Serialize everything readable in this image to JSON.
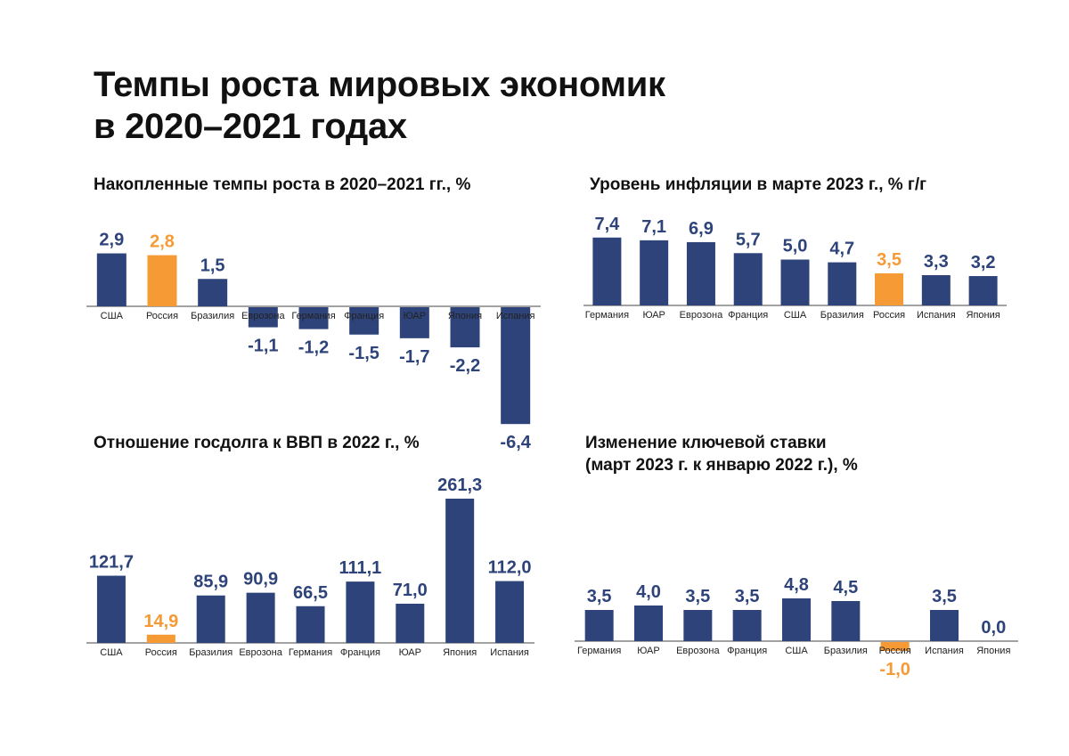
{
  "title": {
    "line1": "Темпы роста мировых экономик",
    "line2": "в 2020–2021 годах"
  },
  "colors": {
    "primary": "#2d4379",
    "highlight": "#f59a35",
    "axis": "#444444"
  },
  "chart_data": [
    {
      "type": "bar",
      "title": "Накопленные темпы роста в 2020–2021 гг., %",
      "categories": [
        "США",
        "Россия",
        "Бразилия",
        "Еврозона",
        "Германия",
        "Франция",
        "ЮАР",
        "Япония",
        "Испания"
      ],
      "values": [
        2.9,
        2.8,
        1.5,
        -1.1,
        -1.2,
        -1.5,
        -1.7,
        -2.2,
        -6.4
      ],
      "labels": [
        "2,9",
        "2,8",
        "1,5",
        "-1,1",
        "-1,2",
        "-1,5",
        "-1,7",
        "-2,2",
        "-6,4"
      ],
      "highlight": "Россия",
      "xlabel": "",
      "ylabel": "",
      "grid": false
    },
    {
      "type": "bar",
      "title": "Уровень инфляции в марте 2023 г., % г/г",
      "categories": [
        "Германия",
        "ЮАР",
        "Еврозона",
        "Франция",
        "США",
        "Бразилия",
        "Россия",
        "Испания",
        "Япония"
      ],
      "values": [
        7.4,
        7.1,
        6.9,
        5.7,
        5.0,
        4.7,
        3.5,
        3.3,
        3.2
      ],
      "labels": [
        "7,4",
        "7,1",
        "6,9",
        "5,7",
        "5,0",
        "4,7",
        "3,5",
        "3,3",
        "3,2"
      ],
      "highlight": "Россия",
      "xlabel": "",
      "ylabel": "",
      "grid": false
    },
    {
      "type": "bar",
      "title": "Отношение госдолга к ВВП в 2022 г., %",
      "categories": [
        "США",
        "Россия",
        "Бразилия",
        "Еврозона",
        "Германия",
        "Франция",
        "ЮАР",
        "Япония",
        "Испания"
      ],
      "values": [
        121.7,
        14.9,
        85.9,
        90.9,
        66.5,
        111.1,
        71.0,
        261.3,
        112.0
      ],
      "labels": [
        "121,7",
        "14,9",
        "85,9",
        "90,9",
        "66,5",
        "111,1",
        "71,0",
        "261,3",
        "112,0"
      ],
      "highlight": "Россия",
      "xlabel": "",
      "ylabel": "",
      "grid": false
    },
    {
      "type": "bar",
      "title": "Изменение ключевой ставки",
      "subtitle": "(март 2023 г. к январю 2022 г.), %",
      "categories": [
        "Германия",
        "ЮАР",
        "Еврозона",
        "Франция",
        "США",
        "Бразилия",
        "Россия",
        "Испания",
        "Япония"
      ],
      "values": [
        3.5,
        4.0,
        3.5,
        3.5,
        4.8,
        4.5,
        -1.0,
        3.5,
        0.0
      ],
      "labels": [
        "3,5",
        "4,0",
        "3,5",
        "3,5",
        "4,8",
        "4,5",
        "-1,0",
        "3,5",
        "0,0"
      ],
      "highlight": "Россия",
      "xlabel": "",
      "ylabel": "",
      "grid": false
    }
  ]
}
